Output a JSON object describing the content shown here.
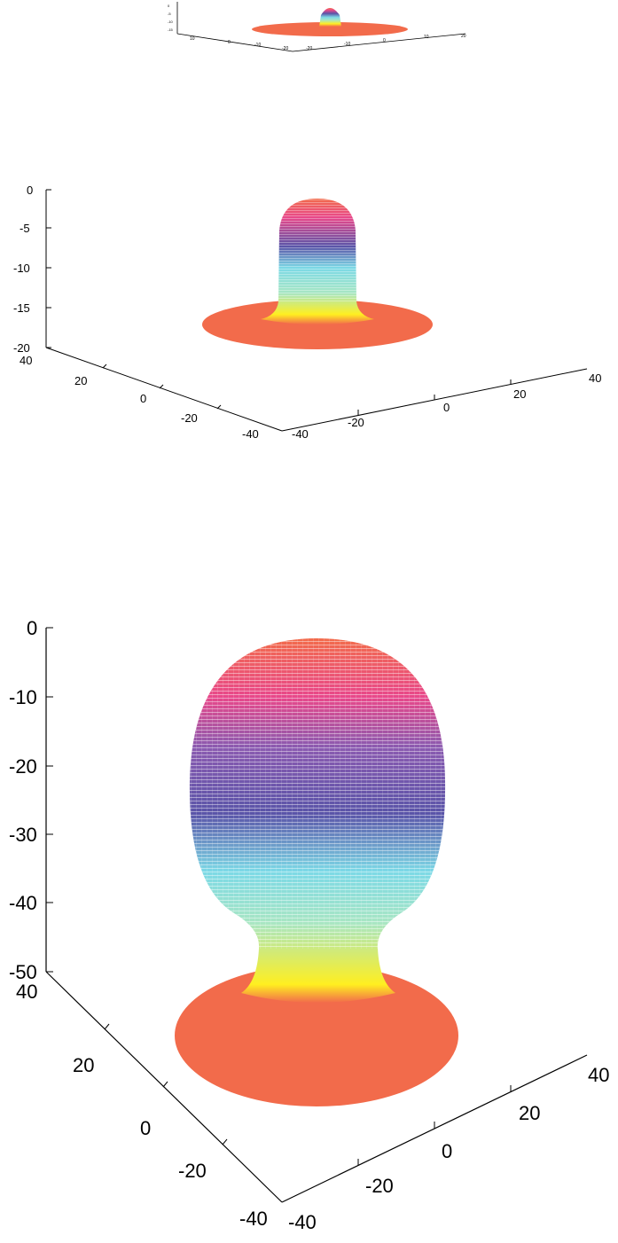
{
  "chart_data": [
    {
      "type": "surface3d",
      "title": "",
      "xlabel": "",
      "ylabel": "",
      "zlabel": "",
      "z_ticks": [
        "0",
        "-5",
        "-10",
        "-15"
      ],
      "x_ticks": [
        "10",
        "0",
        "-10",
        "-20"
      ],
      "y_ticks": [
        "-20",
        "-10",
        "0",
        "10",
        "20"
      ],
      "shape": {
        "base_z": -17,
        "peak_z": -1,
        "column_radius": 5,
        "disc_radius": 35
      },
      "colors": [
        "#f26b4b",
        "#ffef20",
        "#a8e6c4",
        "#7cd9e6",
        "#5a54a8",
        "#e8488a",
        "#f26b4b"
      ]
    },
    {
      "type": "surface3d",
      "title": "",
      "xlabel": "",
      "ylabel": "",
      "zlabel": "",
      "z_ticks": [
        "0",
        "-5",
        "-10",
        "-15",
        "-20"
      ],
      "x_ticks": [
        "40",
        "20",
        "0",
        "-20",
        "-40"
      ],
      "y_ticks": [
        "-40",
        "-20",
        "0",
        "20",
        "40"
      ],
      "zlim": [
        -20,
        0
      ],
      "xlim": [
        -40,
        40
      ],
      "ylim": [
        -40,
        40
      ],
      "shape": {
        "base_z": -17,
        "peak_z": -1,
        "column_radius": 10,
        "disc_radius": 35
      },
      "colors": [
        "#f26b4b",
        "#ffef20",
        "#a8e6c4",
        "#7cd9e6",
        "#5a54a8",
        "#e8488a",
        "#f26b4b"
      ]
    },
    {
      "type": "surface3d",
      "title": "",
      "xlabel": "",
      "ylabel": "",
      "zlabel": "",
      "z_ticks": [
        "0",
        "-10",
        "-20",
        "-30",
        "-40",
        "-50"
      ],
      "x_ticks": [
        "40",
        "20",
        "0",
        "-20",
        "-40"
      ],
      "y_ticks": [
        "-40",
        "-20",
        "0",
        "20",
        "40"
      ],
      "zlim": [
        -50,
        0
      ],
      "xlim": [
        -40,
        40
      ],
      "ylim": [
        -40,
        40
      ],
      "shape": {
        "base_z": -47,
        "peak_z": -1,
        "column_radius": 12,
        "body_radius": 25,
        "disc_radius": 35
      },
      "colors": [
        "#f26b4b",
        "#ffef20",
        "#a8e6c4",
        "#7cd9e6",
        "#5a54a8",
        "#e8488a",
        "#f26b4b"
      ]
    }
  ]
}
